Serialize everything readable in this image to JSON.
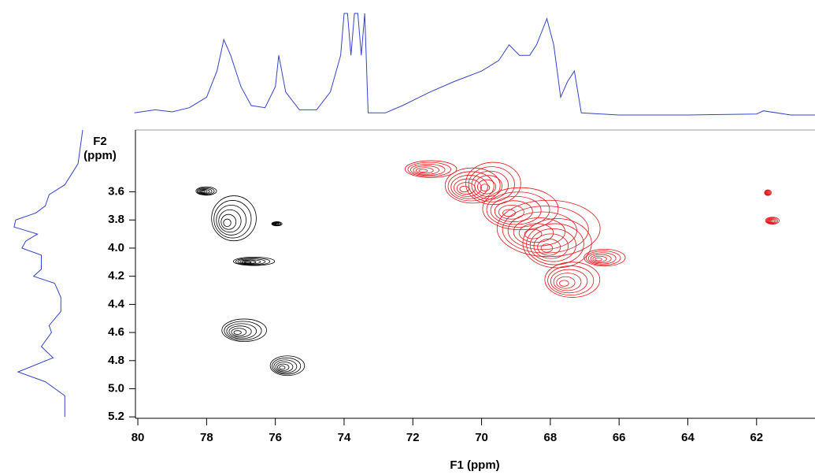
{
  "chart_data": {
    "type": "contour",
    "x_label": "F1 (ppm)",
    "y_label": [
      "F2",
      "(ppm)"
    ],
    "xlim": [
      80.07,
      60.3
    ],
    "xticks": [
      80,
      78,
      76,
      74,
      72,
      70,
      68,
      66,
      64,
      62
    ],
    "ylim": [
      5.21,
      3.16
    ],
    "yticks": [
      3.6,
      3.8,
      {
        "value": 4,
        "label": "4.0"
      },
      4.2,
      4.4,
      4.6,
      4.8,
      {
        "value": 5,
        "label": "5.0"
      },
      5.2
    ],
    "contours": [
      {
        "color": "#000000",
        "x": [
          77.4,
          77.1,
          75.8,
          78.1,
          76.0,
          76.8
        ],
        "y": [
          3.82,
          4.6,
          4.85,
          3.6,
          3.83,
          4.1
        ],
        "x_width": [
          1.3,
          1.3,
          1.0,
          0.6,
          0.3,
          1.2
        ],
        "y_width": [
          0.32,
          0.16,
          0.14,
          0.06,
          0.03,
          0.06
        ]
      },
      {
        "color": "#e8141a",
        "x": [
          71.7,
          70.5,
          69.9,
          69.2,
          68.5,
          68.1,
          66.6,
          67.6,
          61.7,
          61.6
        ],
        "y": [
          3.45,
          3.58,
          3.57,
          3.75,
          3.9,
          4.0,
          4.08,
          4.25,
          3.61,
          3.81
        ],
        "x_width": [
          1.5,
          1.6,
          1.6,
          2.2,
          3.0,
          2.0,
          1.2,
          1.6,
          0.2,
          0.4
        ],
        "y_width": [
          0.12,
          0.25,
          0.3,
          0.3,
          0.4,
          0.35,
          0.12,
          0.25,
          0.04,
          0.05
        ]
      }
    ],
    "f1_projection": {
      "color": "#3344cc",
      "ylim": [
        0,
        100
      ],
      "x": [
        80.1,
        79.5,
        79,
        78.5,
        78,
        77.7,
        77.5,
        77.3,
        77,
        76.7,
        76.3,
        76,
        75.9,
        75.7,
        75.3,
        74.8,
        74.4,
        74.1,
        74,
        73.9,
        73.8,
        73.7,
        73.6,
        73.5,
        73.4,
        73.3,
        72.8,
        72.3,
        71.5,
        70.8,
        70,
        69.5,
        69.2,
        68.9,
        68.6,
        68.4,
        68.1,
        67.9,
        67.7,
        67.5,
        67.3,
        67.1,
        66,
        64,
        62,
        61.8,
        61,
        60.3
      ],
      "values": [
        5,
        8,
        6,
        10,
        20,
        45,
        75,
        60,
        30,
        12,
        10,
        30,
        60,
        25,
        8,
        8,
        25,
        60,
        100,
        100,
        60,
        100,
        100,
        60,
        100,
        5,
        5,
        12,
        25,
        35,
        45,
        55,
        70,
        60,
        60,
        70,
        95,
        70,
        20,
        35,
        45,
        5,
        3,
        3,
        4,
        7,
        3,
        3
      ]
    },
    "f2_projection": {
      "color": "#3344cc",
      "xlim": [
        0,
        100
      ],
      "y": [
        3.16,
        3.4,
        3.55,
        3.62,
        3.7,
        3.75,
        3.8,
        3.85,
        3.9,
        3.95,
        4.0,
        4.05,
        4.15,
        4.2,
        4.25,
        4.35,
        4.45,
        4.55,
        4.6,
        4.7,
        4.78,
        4.88,
        4.95,
        5.05,
        5.2
      ],
      "values": [
        2,
        8,
        25,
        45,
        50,
        62,
        88,
        90,
        60,
        75,
        80,
        55,
        55,
        65,
        38,
        30,
        30,
        45,
        42,
        55,
        40,
        85,
        50,
        25,
        25
      ]
    }
  }
}
